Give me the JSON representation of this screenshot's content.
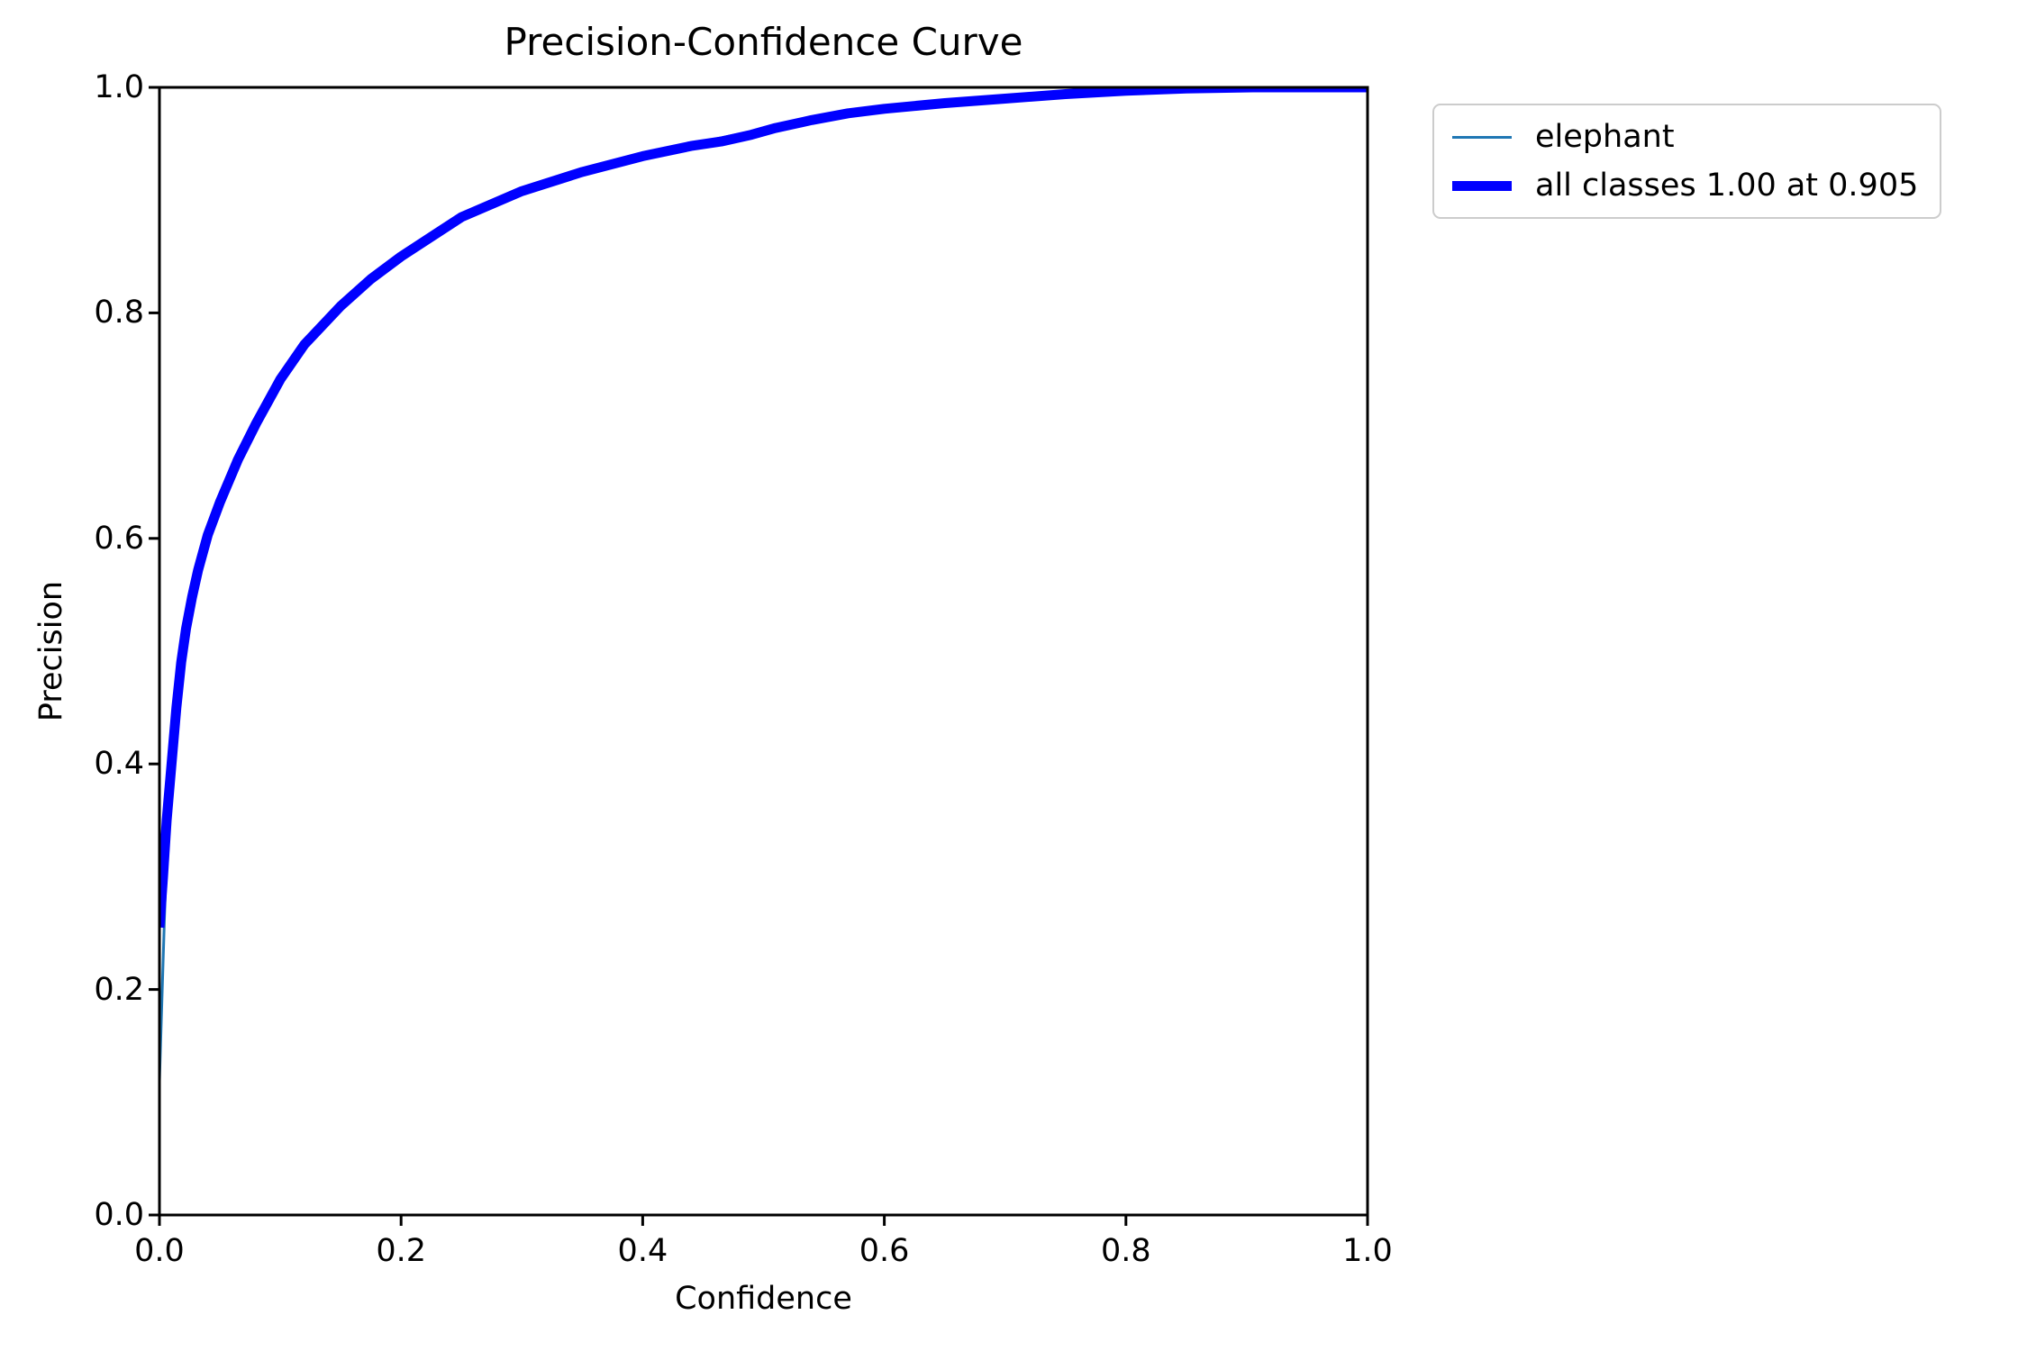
{
  "window": {
    "background": "#ffffff"
  },
  "chart_data": {
    "type": "line",
    "title": "Precision-Confidence Curve",
    "xlabel": "Confidence",
    "ylabel": "Precision",
    "xlim": [
      0.0,
      1.0
    ],
    "ylim": [
      0.0,
      1.0
    ],
    "x_ticks": [
      "0.0",
      "0.2",
      "0.4",
      "0.6",
      "0.8",
      "1.0"
    ],
    "y_ticks": [
      "0.0",
      "0.2",
      "0.4",
      "0.6",
      "0.8",
      "1.0"
    ],
    "grid": false,
    "axes_color": "#000000",
    "legend": {
      "position": "outside-upper-right",
      "border_color": "#cccccc",
      "background": "#ffffff"
    },
    "series": [
      {
        "key": "elephant",
        "name": "elephant",
        "color": "#1f77b4",
        "line_width": 3,
        "points": [
          [
            0.0,
            0.119
          ],
          [
            0.002,
            0.19
          ],
          [
            0.004,
            0.26
          ],
          [
            0.006,
            0.32
          ],
          [
            0.009,
            0.385
          ],
          [
            0.012,
            0.435
          ],
          [
            0.016,
            0.483
          ],
          [
            0.02,
            0.517
          ],
          [
            0.025,
            0.552
          ],
          [
            0.03,
            0.575
          ],
          [
            0.04,
            0.61
          ],
          [
            0.05,
            0.64
          ],
          [
            0.065,
            0.676
          ],
          [
            0.08,
            0.708
          ],
          [
            0.1,
            0.746
          ],
          [
            0.12,
            0.776
          ],
          [
            0.15,
            0.81
          ],
          [
            0.175,
            0.833
          ],
          [
            0.2,
            0.853
          ],
          [
            0.25,
            0.887
          ],
          [
            0.3,
            0.91
          ],
          [
            0.35,
            0.927
          ],
          [
            0.4,
            0.941
          ],
          [
            0.45,
            0.952
          ],
          [
            0.5,
            0.963
          ],
          [
            0.55,
            0.974
          ],
          [
            0.6,
            0.982
          ],
          [
            0.65,
            0.987
          ],
          [
            0.7,
            0.991
          ],
          [
            0.75,
            0.994
          ],
          [
            0.8,
            0.997
          ],
          [
            0.85,
            0.999
          ],
          [
            0.905,
            1.0
          ],
          [
            1.0,
            1.0
          ]
        ]
      },
      {
        "key": "all-classes",
        "name": "all classes 1.00 at 0.905",
        "color": "#0000ff",
        "line_width": 11,
        "points": [
          [
            0.0,
            0.255
          ],
          [
            0.003,
            0.3
          ],
          [
            0.006,
            0.35
          ],
          [
            0.01,
            0.4
          ],
          [
            0.014,
            0.45
          ],
          [
            0.018,
            0.49
          ],
          [
            0.022,
            0.52
          ],
          [
            0.027,
            0.548
          ],
          [
            0.032,
            0.572
          ],
          [
            0.04,
            0.603
          ],
          [
            0.05,
            0.632
          ],
          [
            0.065,
            0.67
          ],
          [
            0.08,
            0.702
          ],
          [
            0.1,
            0.741
          ],
          [
            0.12,
            0.772
          ],
          [
            0.15,
            0.806
          ],
          [
            0.175,
            0.83
          ],
          [
            0.2,
            0.85
          ],
          [
            0.25,
            0.885
          ],
          [
            0.3,
            0.908
          ],
          [
            0.35,
            0.925
          ],
          [
            0.4,
            0.939
          ],
          [
            0.44,
            0.948
          ],
          [
            0.465,
            0.952
          ],
          [
            0.49,
            0.958
          ],
          [
            0.51,
            0.964
          ],
          [
            0.54,
            0.971
          ],
          [
            0.57,
            0.977
          ],
          [
            0.6,
            0.981
          ],
          [
            0.65,
            0.986
          ],
          [
            0.7,
            0.99
          ],
          [
            0.75,
            0.994
          ],
          [
            0.8,
            0.997
          ],
          [
            0.85,
            0.999
          ],
          [
            0.905,
            1.0
          ],
          [
            1.0,
            1.0
          ]
        ]
      }
    ]
  }
}
